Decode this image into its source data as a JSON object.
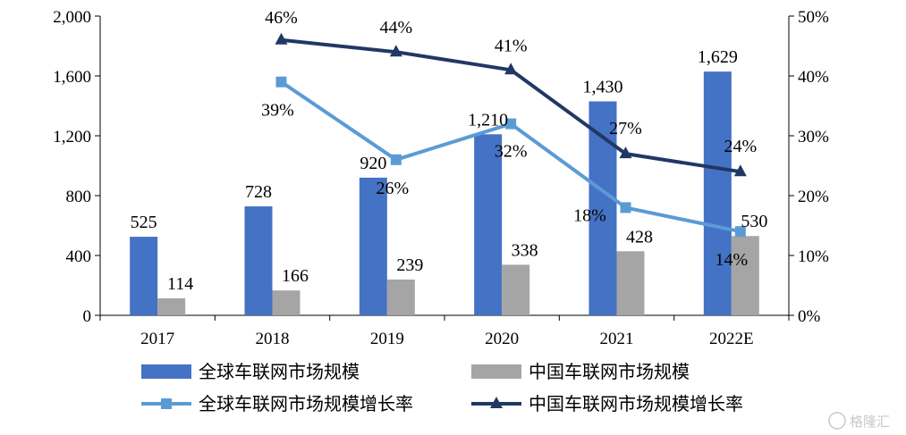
{
  "chart_data": {
    "type": "bar",
    "categories": [
      "2017",
      "2018",
      "2019",
      "2020",
      "2021",
      "2022E"
    ],
    "series": [
      {
        "name": "全球车联网市场规模",
        "kind": "bar",
        "axis": "left",
        "color": "#4472C4",
        "values": [
          525,
          728,
          920,
          1210,
          1430,
          1629
        ],
        "labels": [
          "525",
          "728",
          "920",
          "1,210",
          "1,430",
          "1,629"
        ]
      },
      {
        "name": "中国车联网市场规模",
        "kind": "bar",
        "axis": "left",
        "color": "#A5A5A5",
        "values": [
          114,
          166,
          239,
          338,
          428,
          530
        ],
        "labels": [
          "114",
          "166",
          "239",
          "338",
          "428",
          "530"
        ]
      },
      {
        "name": "全球车联网市场规模增长率",
        "kind": "line",
        "axis": "right",
        "color": "#5B9BD5",
        "marker": "square",
        "values": [
          null,
          39,
          26,
          32,
          18,
          14
        ],
        "labels": [
          null,
          "39%",
          "26%",
          "32%",
          "18%",
          "14%"
        ]
      },
      {
        "name": "中国车联网市场规模增长率",
        "kind": "line",
        "axis": "right",
        "color": "#203864",
        "marker": "triangle",
        "values": [
          null,
          46,
          44,
          41,
          27,
          24
        ],
        "labels": [
          null,
          "46%",
          "44%",
          "41%",
          "27%",
          "24%"
        ]
      }
    ],
    "y_left": {
      "ylim": [
        0,
        2000
      ],
      "ticks": [
        "0",
        "400",
        "800",
        "1,200",
        "1,600",
        "2,000"
      ]
    },
    "y_right": {
      "ylim": [
        0,
        50
      ],
      "ticks": [
        "0%",
        "10%",
        "20%",
        "30%",
        "40%",
        "50%"
      ]
    },
    "grid": false,
    "legend_position": "bottom"
  },
  "watermark": "格隆汇"
}
